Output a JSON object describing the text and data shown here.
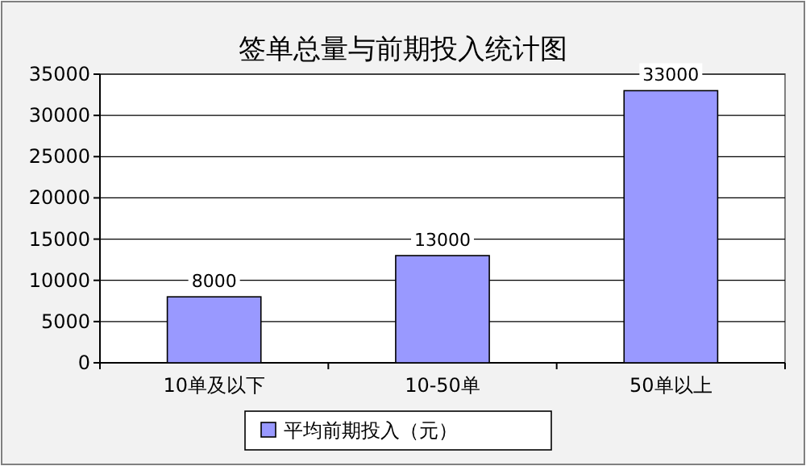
{
  "chart_data": {
    "type": "bar",
    "title": "签单总量与前期投入统计图",
    "categories": [
      "10单及以下",
      "10-50单",
      "50单以上"
    ],
    "series": [
      {
        "name": "平均前期投入（元）",
        "color": "#9999ff",
        "values": [
          8000,
          13000,
          33000
        ]
      }
    ],
    "ylim": [
      0,
      35000
    ],
    "yticks": [
      0,
      5000,
      10000,
      15000,
      20000,
      25000,
      30000,
      35000
    ],
    "grid": "y",
    "legend": "bottom",
    "data_labels": true
  }
}
